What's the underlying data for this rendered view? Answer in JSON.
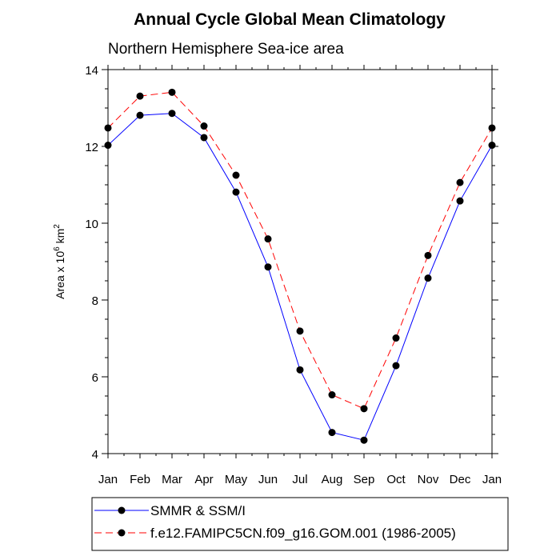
{
  "chart_data": {
    "type": "line",
    "title": "Annual Cycle Global Mean Climatology",
    "subtitle": "Northern Hemisphere Sea-ice area",
    "ylabel": {
      "prefix": "Area x 10",
      "exp1": "6",
      "mid": " km",
      "exp2": "2"
    },
    "categories": [
      "Jan",
      "Feb",
      "Mar",
      "Apr",
      "May",
      "Jun",
      "Jul",
      "Aug",
      "Sep",
      "Oct",
      "Nov",
      "Dec",
      "Jan"
    ],
    "ylim": [
      4,
      14
    ],
    "yticks": [
      4,
      6,
      8,
      10,
      12,
      14
    ],
    "grid": false,
    "legend_position": "bottom",
    "series": [
      {
        "name": "SMMR & SSM/I",
        "values": [
          12.03,
          12.81,
          12.86,
          12.23,
          10.81,
          8.86,
          6.18,
          4.55,
          4.35,
          6.29,
          8.57,
          10.58,
          12.03
        ],
        "color": "#0000ff",
        "dash": "solid"
      },
      {
        "name": "f.e12.FAMIPC5CN.f09_g16.GOM.001 (1986-2005)",
        "values": [
          12.48,
          13.31,
          13.41,
          12.53,
          11.25,
          9.59,
          7.19,
          5.53,
          5.17,
          7.01,
          9.16,
          11.06,
          12.48
        ],
        "color": "#ff0000",
        "dash": "dashed"
      }
    ]
  }
}
